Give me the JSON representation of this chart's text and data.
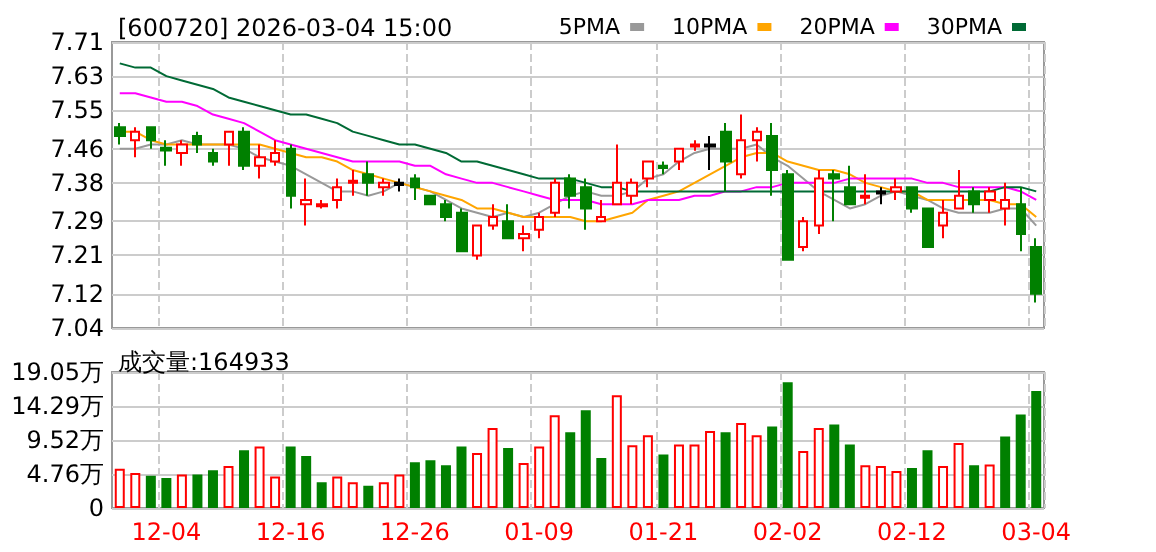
{
  "chart_data": [
    {
      "type": "candlestick",
      "title": "[600720] 2026-03-04 15:00",
      "categories": [
        null,
        null,
        null,
        null,
        null,
        null,
        null,
        null,
        null,
        null,
        null,
        null,
        null,
        null,
        null,
        null,
        null,
        null,
        null,
        null,
        null,
        null,
        null,
        null,
        null,
        null,
        null,
        null,
        null,
        null,
        null,
        null,
        null,
        null,
        null,
        null,
        null,
        null,
        null,
        null,
        null,
        null,
        null,
        null,
        null,
        null,
        null,
        null,
        null,
        null,
        null,
        null,
        null,
        null,
        null,
        null,
        null,
        null,
        null,
        null
      ],
      "series": [
        {
          "type": "candlestick",
          "ohlc": [
            [
              7.51,
              7.52,
              7.47,
              7.49
            ],
            [
              7.48,
              7.51,
              7.44,
              7.5
            ],
            [
              7.51,
              7.51,
              7.46,
              7.48
            ],
            [
              7.462,
              7.48,
              7.42,
              7.456
            ],
            [
              7.45,
              7.48,
              7.42,
              7.47
            ],
            [
              7.49,
              7.5,
              7.45,
              7.47
            ],
            [
              7.45,
              7.46,
              7.42,
              7.43
            ],
            [
              7.47,
              7.5,
              7.42,
              7.5
            ],
            [
              7.5,
              7.51,
              7.41,
              7.42
            ],
            [
              7.42,
              7.47,
              7.39,
              7.44
            ],
            [
              7.43,
              7.48,
              7.42,
              7.45
            ],
            [
              7.46,
              7.47,
              7.32,
              7.35
            ],
            [
              7.33,
              7.39,
              7.28,
              7.34
            ],
            [
              7.325,
              7.34,
              7.32,
              7.33
            ],
            [
              7.34,
              7.39,
              7.32,
              7.37
            ],
            [
              7.38,
              7.41,
              7.35,
              7.385
            ],
            [
              7.4,
              7.43,
              7.35,
              7.38
            ],
            [
              7.37,
              7.39,
              7.35,
              7.38
            ],
            [
              7.38,
              7.39,
              7.36,
              7.375
            ],
            [
              7.39,
              7.4,
              7.34,
              7.37
            ],
            [
              7.35,
              7.35,
              7.33,
              7.33
            ],
            [
              7.33,
              7.34,
              7.29,
              7.3
            ],
            [
              7.31,
              7.32,
              7.22,
              7.22
            ],
            [
              7.21,
              7.28,
              7.2,
              7.28
            ],
            [
              7.28,
              7.33,
              7.27,
              7.3
            ],
            [
              7.29,
              7.33,
              7.25,
              7.25
            ],
            [
              7.25,
              7.28,
              7.22,
              7.26
            ],
            [
              7.27,
              7.31,
              7.25,
              7.3
            ],
            [
              7.31,
              7.39,
              7.3,
              7.38
            ],
            [
              7.39,
              7.4,
              7.32,
              7.35
            ],
            [
              7.37,
              7.39,
              7.27,
              7.32
            ],
            [
              7.29,
              7.34,
              7.29,
              7.3
            ],
            [
              7.33,
              7.47,
              7.33,
              7.38
            ],
            [
              7.35,
              7.39,
              7.33,
              7.38
            ],
            [
              7.39,
              7.43,
              7.37,
              7.43
            ],
            [
              7.42,
              7.43,
              7.4,
              7.415
            ],
            [
              7.43,
              7.46,
              7.41,
              7.46
            ],
            [
              7.465,
              7.48,
              7.455,
              7.47
            ],
            [
              7.47,
              7.49,
              7.41,
              7.465
            ],
            [
              7.5,
              7.52,
              7.36,
              7.43
            ],
            [
              7.4,
              7.54,
              7.39,
              7.48
            ],
            [
              7.48,
              7.51,
              7.43,
              7.5
            ],
            [
              7.49,
              7.52,
              7.35,
              7.41
            ],
            [
              7.4,
              7.41,
              7.2,
              7.2
            ],
            [
              7.23,
              7.3,
              7.22,
              7.29
            ],
            [
              7.28,
              7.41,
              7.26,
              7.39
            ],
            [
              7.4,
              7.41,
              7.29,
              7.39
            ],
            [
              7.37,
              7.42,
              7.33,
              7.33
            ],
            [
              7.345,
              7.4,
              7.33,
              7.35
            ],
            [
              7.36,
              7.37,
              7.33,
              7.355
            ],
            [
              7.36,
              7.39,
              7.34,
              7.37
            ],
            [
              7.37,
              7.37,
              7.31,
              7.32
            ],
            [
              7.32,
              7.32,
              7.23,
              7.23
            ],
            [
              7.28,
              7.34,
              7.25,
              7.31
            ],
            [
              7.32,
              7.41,
              7.32,
              7.35
            ],
            [
              7.36,
              7.37,
              7.31,
              7.33
            ],
            [
              7.34,
              7.37,
              7.31,
              7.36
            ],
            [
              7.32,
              7.38,
              7.28,
              7.34
            ],
            [
              7.33,
              7.37,
              7.22,
              7.26
            ],
            [
              7.23,
              7.25,
              7.1,
              7.12
            ]
          ],
          "colors": [
            "#008000",
            "#ff0000",
            "#008000",
            "#008000",
            "#ff0000",
            "#008000",
            "#008000",
            "#ff0000",
            "#008000",
            "#ff0000",
            "#ff0000",
            "#008000",
            "#ff0000",
            "#ff0000",
            "#ff0000",
            "#ff0000",
            "#008000",
            "#ff0000",
            "#000000",
            "#008000",
            "#008000",
            "#008000",
            "#008000",
            "#ff0000",
            "#ff0000",
            "#008000",
            "#ff0000",
            "#ff0000",
            "#ff0000",
            "#008000",
            "#008000",
            "#ff0000",
            "#ff0000",
            "#ff0000",
            "#ff0000",
            "#008000",
            "#ff0000",
            "#ff0000",
            "#000000",
            "#008000",
            "#ff0000",
            "#ff0000",
            "#008000",
            "#008000",
            "#ff0000",
            "#ff0000",
            "#008000",
            "#008000",
            "#ff0000",
            "#000000",
            "#ff0000",
            "#008000",
            "#008000",
            "#ff0000",
            "#ff0000",
            "#008000",
            "#ff0000",
            "#ff0000",
            "#008000",
            "#008000"
          ]
        },
        {
          "type": "line",
          "name": "5PMA",
          "color": "#999999",
          "values": [
            7.46,
            7.46,
            7.47,
            7.47,
            7.48,
            7.47,
            7.47,
            7.47,
            7.46,
            7.44,
            7.43,
            7.42,
            7.4,
            7.38,
            7.36,
            7.36,
            7.35,
            7.36,
            7.38,
            7.37,
            7.36,
            7.34,
            7.32,
            7.31,
            7.3,
            7.31,
            7.3,
            7.31,
            7.33,
            7.35,
            7.36,
            7.35,
            7.35,
            7.36,
            7.39,
            7.4,
            7.43,
            7.45,
            7.46,
            7.46,
            7.46,
            7.47,
            7.44,
            7.42,
            7.39,
            7.36,
            7.34,
            7.32,
            7.33,
            7.35,
            7.36,
            7.35,
            7.34,
            7.32,
            7.31,
            7.31,
            7.31,
            7.32,
            7.32,
            7.28
          ]
        },
        {
          "type": "line",
          "name": "10PMA",
          "color": "#ffa500",
          "values": [
            7.5,
            7.5,
            7.48,
            7.47,
            7.47,
            7.47,
            7.47,
            7.47,
            7.47,
            7.47,
            7.46,
            7.45,
            7.44,
            7.44,
            7.43,
            7.41,
            7.4,
            7.39,
            7.38,
            7.37,
            7.36,
            7.35,
            7.34,
            7.32,
            7.32,
            7.31,
            7.3,
            7.3,
            7.3,
            7.3,
            7.29,
            7.29,
            7.3,
            7.31,
            7.34,
            7.35,
            7.36,
            7.38,
            7.4,
            7.42,
            7.44,
            7.45,
            7.45,
            7.43,
            7.42,
            7.41,
            7.41,
            7.4,
            7.38,
            7.37,
            7.36,
            7.36,
            7.34,
            7.34,
            7.34,
            7.34,
            7.34,
            7.33,
            7.33,
            7.3
          ]
        },
        {
          "type": "line",
          "name": "20PMA",
          "color": "#ff00ff",
          "values": [
            7.59,
            7.59,
            7.58,
            7.57,
            7.57,
            7.56,
            7.54,
            7.53,
            7.52,
            7.5,
            7.48,
            7.47,
            7.46,
            7.45,
            7.44,
            7.43,
            7.43,
            7.43,
            7.43,
            7.42,
            7.42,
            7.4,
            7.39,
            7.38,
            7.38,
            7.37,
            7.36,
            7.35,
            7.34,
            7.34,
            7.34,
            7.33,
            7.33,
            7.33,
            7.34,
            7.34,
            7.34,
            7.35,
            7.35,
            7.36,
            7.36,
            7.37,
            7.37,
            7.38,
            7.38,
            7.38,
            7.38,
            7.39,
            7.39,
            7.39,
            7.39,
            7.39,
            7.38,
            7.38,
            7.37,
            7.37,
            7.37,
            7.37,
            7.36,
            7.34
          ]
        },
        {
          "type": "line",
          "name": "30PMA",
          "color": "#006a35",
          "values": [
            7.66,
            7.65,
            7.65,
            7.63,
            7.62,
            7.61,
            7.6,
            7.58,
            7.57,
            7.56,
            7.55,
            7.54,
            7.54,
            7.53,
            7.52,
            7.5,
            7.49,
            7.48,
            7.47,
            7.47,
            7.46,
            7.45,
            7.43,
            7.43,
            7.42,
            7.41,
            7.4,
            7.39,
            7.39,
            7.39,
            7.38,
            7.37,
            7.37,
            7.36,
            7.36,
            7.36,
            7.36,
            7.36,
            7.36,
            7.36,
            7.36,
            7.36,
            7.36,
            7.36,
            7.36,
            7.36,
            7.36,
            7.36,
            7.36,
            7.36,
            7.36,
            7.36,
            7.36,
            7.36,
            7.36,
            7.36,
            7.36,
            7.37,
            7.37,
            7.36
          ]
        }
      ],
      "ylim": [
        7.04,
        7.71
      ],
      "yticks": [
        7.04,
        7.12,
        7.21,
        7.29,
        7.38,
        7.46,
        7.55,
        7.63,
        7.71
      ],
      "grid": true,
      "legend": "top right",
      "tick_labels": "y",
      "marker": "none",
      "line_style": "solid"
    },
    {
      "type": "bar",
      "title": "成交量:164933",
      "categories": [
        null,
        null,
        null,
        "12-04",
        null,
        null,
        null,
        null,
        null,
        null,
        null,
        "12-16",
        null,
        null,
        null,
        null,
        null,
        null,
        null,
        "12-26",
        null,
        null,
        null,
        null,
        null,
        null,
        null,
        "01-09",
        null,
        null,
        null,
        null,
        null,
        null,
        null,
        "01-21",
        null,
        null,
        null,
        null,
        null,
        null,
        null,
        "02-02",
        null,
        null,
        null,
        null,
        null,
        null,
        null,
        "02-12",
        null,
        null,
        null,
        null,
        null,
        null,
        null,
        "03-04"
      ],
      "values": [
        5.5,
        4.9,
        4.5,
        4.2,
        4.7,
        4.7,
        5.3,
        5.9,
        8.1,
        8.6,
        4.4,
        8.6,
        7.3,
        3.6,
        4.4,
        3.6,
        3.1,
        3.6,
        4.7,
        6.4,
        6.7,
        6.0,
        8.6,
        7.7,
        11.2,
        8.4,
        6.3,
        8.6,
        13.0,
        10.6,
        13.7,
        7.0,
        15.8,
        8.8,
        10.2,
        7.5,
        8.9,
        8.9,
        10.8,
        10.6,
        11.9,
        10.2,
        11.4,
        17.6,
        8.0,
        11.2,
        11.7,
        8.9,
        6.0,
        5.9,
        5.2,
        5.6,
        8.1,
        5.9,
        9.1,
        6.0,
        6.1,
        10.0,
        13.1,
        16.4
      ],
      "colors": [
        "#ff0000",
        "#ff0000",
        "#008000",
        "#008000",
        "#ff0000",
        "#008000",
        "#008000",
        "#ff0000",
        "#008000",
        "#ff0000",
        "#ff0000",
        "#008000",
        "#008000",
        "#008000",
        "#ff0000",
        "#ff0000",
        "#008000",
        "#ff0000",
        "#ff0000",
        "#008000",
        "#008000",
        "#008000",
        "#008000",
        "#ff0000",
        "#ff0000",
        "#008000",
        "#ff0000",
        "#ff0000",
        "#ff0000",
        "#008000",
        "#008000",
        "#008000",
        "#ff0000",
        "#ff0000",
        "#ff0000",
        "#008000",
        "#ff0000",
        "#ff0000",
        "#ff0000",
        "#008000",
        "#ff0000",
        "#ff0000",
        "#008000",
        "#008000",
        "#ff0000",
        "#ff0000",
        "#008000",
        "#008000",
        "#ff0000",
        "#ff0000",
        "#ff0000",
        "#008000",
        "#008000",
        "#ff0000",
        "#ff0000",
        "#008000",
        "#ff0000",
        "#008000",
        "#008000",
        "#008000"
      ],
      "ylim": [
        0,
        19.05
      ],
      "yticks": [
        0,
        {
          "value": 4.76,
          "label": "4.76万"
        },
        {
          "value": 9.52,
          "label": "9.52万"
        },
        {
          "value": 14.29,
          "label": "14.29万"
        },
        {
          "value": 19.05,
          "label": "19.05万"
        }
      ],
      "grid": true
    }
  ]
}
